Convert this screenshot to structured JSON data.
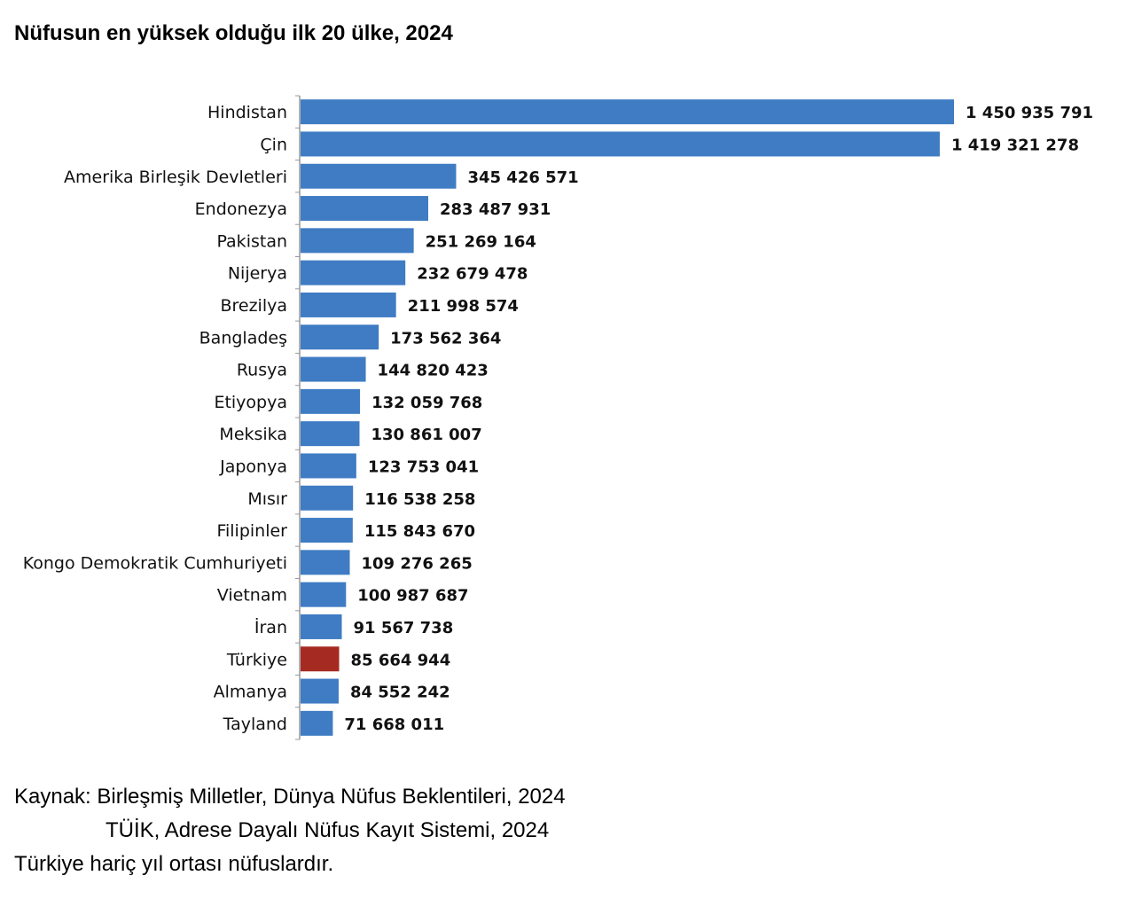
{
  "title": "Nüfusun en yüksek olduğu ilk 20 ülke, 2024",
  "source": {
    "label": "Kaynak:",
    "line1": "Birleşmiş Milletler, Dünya Nüfus Beklentileri, 2024",
    "line2": "TÜİK, Adrese Dayalı Nüfus Kayıt Sistemi, 2024"
  },
  "note": "Türkiye hariç yıl ortası nüfuslardır.",
  "colors": {
    "bar": "#3f7cc3",
    "highlight": "#a52a22",
    "axis": "#999999"
  },
  "chart_data": {
    "type": "bar",
    "orientation": "horizontal",
    "title": "Nüfusun en yüksek olduğu ilk 20 ülke, 2024",
    "categories": [
      "Hindistan",
      "Çin",
      "Amerika Birleşik Devletleri",
      "Endonezya",
      "Pakistan",
      "Nijerya",
      "Brezilya",
      "Bangladeş",
      "Rusya",
      "Etiyopya",
      "Meksika",
      "Japonya",
      "Mısır",
      "Filipinler",
      "Kongo Demokratik Cumhuriyeti",
      "Vietnam",
      "İran",
      "Türkiye",
      "Almanya",
      "Tayland"
    ],
    "values": [
      1450935791,
      1419321278,
      345426571,
      283487931,
      251269164,
      232679478,
      211998574,
      173562364,
      144820423,
      132059768,
      130861007,
      123753041,
      116538258,
      115843670,
      109276265,
      100987687,
      91567738,
      85664944,
      84552242,
      71668011
    ],
    "value_labels": [
      "1 450 935 791",
      "1 419 321 278",
      "345 426 571",
      "283 487 931",
      "251 269 164",
      "232 679 478",
      "211 998 574",
      "173 562 364",
      "144 820 423",
      "132 059 768",
      "130 861 007",
      "123 753 041",
      "116 538 258",
      "115 843 670",
      "109 276 265",
      "100 987 687",
      "91 567 738",
      "85 664 944",
      "84 552 242",
      "71 668 011"
    ],
    "highlight": "Türkiye",
    "xlim": [
      0,
      1450935791
    ]
  }
}
